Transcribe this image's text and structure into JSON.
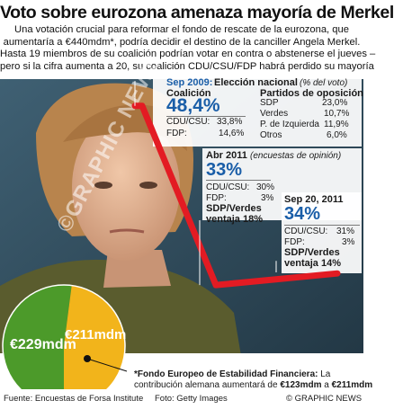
{
  "header": {
    "title": "Voto sobre eurozona amenaza mayoría de Merkel",
    "intro_lines": [
      "Una votación crucial para reformar el fondo de rescate de la eurozona, que",
      "aumentaría a €440mdm*, podría decidir el destino de la canciller Angela Merkel.",
      "Hasta 19 miembros de su coalición podrían votar en contra o abstenerse el jueves –",
      "pero si la cifra aumenta a 20, su coalición CDU/CSU/FDP habrá perdido su mayoría"
    ]
  },
  "panel_2009": {
    "date": "Sep 2009:",
    "title": "Elección nacional",
    "note": "(% del voto)",
    "coalition_label": "Coalición",
    "coalition_value": "48,4%",
    "coalition_parties": [
      {
        "name": "CDU/CSU:",
        "value": "33,8%"
      },
      {
        "name": "FDP:",
        "value": "14,6%"
      }
    ],
    "opposition_label": "Partidos de oposición",
    "opposition_parties": [
      {
        "name": "SDP",
        "value": "23,0%"
      },
      {
        "name": "Verdes",
        "value": "10,7%"
      },
      {
        "name": "P. de Izquierda",
        "value": "11,9%"
      },
      {
        "name": "Otros",
        "value": "6,0%"
      }
    ]
  },
  "panel_apr2011": {
    "date": "Abr 2011",
    "note": "(encuestas de opinión)",
    "coalition_value": "33%",
    "parties": [
      {
        "name": "CDU/CSU:",
        "value": "30%"
      },
      {
        "name": "FDP:",
        "value": "3%"
      }
    ],
    "lead_line1": "SDP/Verdes",
    "lead_line2": "ventaja 18%"
  },
  "panel_sep2011": {
    "date": "Sep 20, 2011",
    "coalition_value": "34%",
    "parties": [
      {
        "name": "CDU/CSU:",
        "value": "31%"
      },
      {
        "name": "FDP:",
        "value": "3%"
      }
    ],
    "lead_line1": "SDP/Verdes",
    "lead_line2": "ventaja 14%"
  },
  "fund": {
    "label_green": "€229mdm",
    "label_yellow": "€211mdm",
    "note_line1_bold": "*Fondo Europeo de Estabilidad Financiera:",
    "note_line1_rest": " La",
    "note_line2_pre": "contribución alemana aumentará de ",
    "note_line2_from": "€123mdm",
    "note_line2_mid": " a ",
    "note_line2_to": "€211mdm"
  },
  "watermark": "©GRAPHIC NEWS",
  "footer": {
    "source": "Fuente: Encuestas de Forsa Institute",
    "photo": "Foto: Getty Images",
    "credit": "© GRAPHIC NEWS"
  },
  "colors": {
    "line_red": "#e31b23",
    "accent_blue": "#1a5ea8",
    "pie_green": "#4c9a2a",
    "pie_yellow": "#f2b41b",
    "photo_bg": "#2f4a5c"
  },
  "chart_data": [
    {
      "type": "line",
      "title": "",
      "x": [
        "Sep 2009",
        "Abr 2011",
        "Sep 20, 2011"
      ],
      "series": [
        {
          "name": "Coalición",
          "values": [
            48.4,
            33,
            34
          ]
        }
      ],
      "xlabel": "",
      "ylabel": "",
      "grid": false
    },
    {
      "type": "pie",
      "categories": [
        "€229mdm",
        "€211mdm"
      ],
      "values": [
        229,
        211
      ]
    }
  ]
}
